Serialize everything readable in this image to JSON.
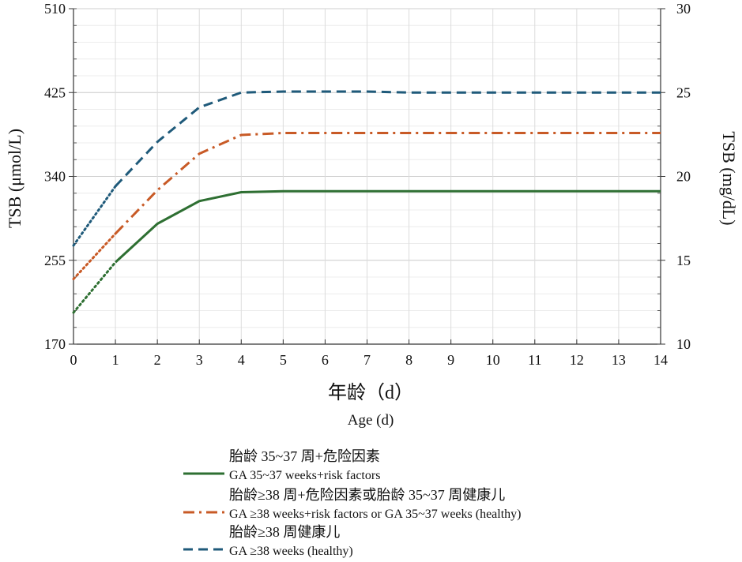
{
  "chart_data": {
    "type": "line",
    "title": "",
    "xlabel": "年龄（d）",
    "xlabel_en": "Age (d)",
    "ylabel_left": "TSB (μmol/L)",
    "ylabel_right": "TSB (mg/dL)",
    "xlim": [
      0,
      14
    ],
    "ylim_left": [
      170,
      510
    ],
    "ylim_right": [
      10,
      30
    ],
    "x_ticks": [
      "0",
      "1",
      "2",
      "3",
      "4",
      "5",
      "6",
      "7",
      "8",
      "9",
      "10",
      "11",
      "12",
      "13",
      "14"
    ],
    "y_ticks_left": [
      "170",
      "255",
      "340",
      "425",
      "510"
    ],
    "y_ticks_right": [
      "10",
      "15",
      "20",
      "25",
      "30"
    ],
    "grid": true,
    "legend_position": "bottom",
    "series": [
      {
        "name": "胎龄 35~37 周+危险因素",
        "name_en": "GA 35~37 weeks+risk factors",
        "color": "#2e6f32",
        "style": "solid",
        "x": [
          0,
          1,
          2,
          3,
          4,
          5,
          6,
          7,
          8,
          9,
          10,
          11,
          12,
          13,
          14
        ],
        "values": [
          202,
          253,
          292,
          315,
          324,
          325,
          325,
          325,
          325,
          325,
          325,
          325,
          325,
          325,
          325
        ],
        "extrapolated_until_x": 1
      },
      {
        "name": "胎龄≥38 周+危险因素或胎龄 35~37 周健康儿",
        "name_en": "GA ≥38 weeks+risk factors or GA 35~37 weeks (healthy)",
        "color": "#c85a26",
        "style": "dashdot",
        "x": [
          0,
          1,
          2,
          3,
          4,
          5,
          6,
          7,
          8,
          9,
          10,
          11,
          12,
          13,
          14
        ],
        "values": [
          236,
          282,
          326,
          363,
          382,
          384,
          384,
          384,
          384,
          384,
          384,
          384,
          384,
          384,
          384
        ],
        "extrapolated_until_x": 1
      },
      {
        "name": "胎龄≥38 周健康儿",
        "name_en": "GA ≥38 weeks (healthy)",
        "color": "#1f5a7a",
        "style": "dashed",
        "x": [
          0,
          1,
          2,
          3,
          4,
          5,
          6,
          7,
          8,
          9,
          10,
          11,
          12,
          13,
          14
        ],
        "values": [
          270,
          330,
          375,
          410,
          425,
          426,
          426,
          426,
          425,
          425,
          425,
          425,
          425,
          425,
          425
        ],
        "extrapolated_until_x": 1
      }
    ]
  }
}
